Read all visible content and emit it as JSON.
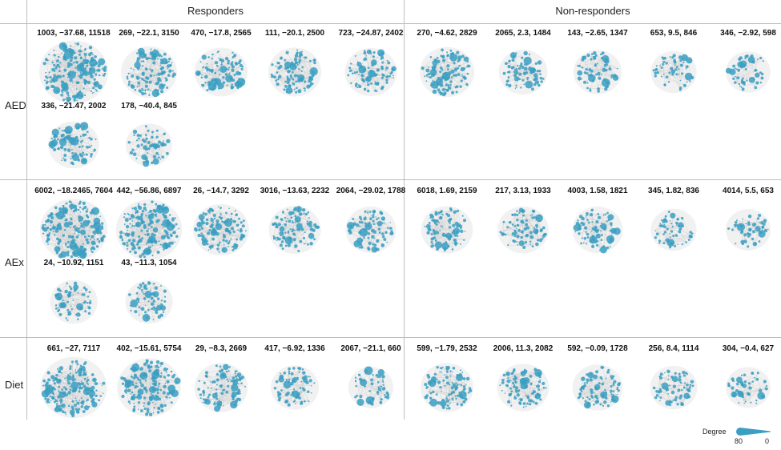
{
  "columns": [
    {
      "key": "responders",
      "label": "Responders"
    },
    {
      "key": "nonresponders",
      "label": "Non-responders"
    }
  ],
  "rows": [
    {
      "key": "aed",
      "label": "AED",
      "responders": [
        {
          "label": "1003, −37.68, 11518",
          "density": 1.0
        },
        {
          "label": "269, −22.1, 3150",
          "density": 0.55
        },
        {
          "label": "470, −17.8, 2565",
          "density": 0.45
        },
        {
          "label": "111, −20.1, 2500",
          "density": 0.45
        },
        {
          "label": "723, −24.87, 2402",
          "density": 0.42
        },
        {
          "label": "336, −21.47, 2002",
          "density": 0.38
        },
        {
          "label": "178, −40.4, 845",
          "density": 0.22
        }
      ],
      "nonresponders": [
        {
          "label": "270, −4.62, 2829",
          "density": 0.5
        },
        {
          "label": "2065, 2.3, 1484",
          "density": 0.3
        },
        {
          "label": "143, −2.65, 1347",
          "density": 0.28
        },
        {
          "label": "653, 9.5, 846",
          "density": 0.2
        },
        {
          "label": "346, −2.92, 598",
          "density": 0.16
        }
      ]
    },
    {
      "key": "aex",
      "label": "AEx",
      "responders": [
        {
          "label": "6002, −18.2465, 7604",
          "density": 0.95
        },
        {
          "label": "442, −56.86, 6897",
          "density": 0.9
        },
        {
          "label": "26, −14.7, 3292",
          "density": 0.55
        },
        {
          "label": "3016, −13.63, 2232",
          "density": 0.42
        },
        {
          "label": "2064, −29.02, 1788",
          "density": 0.36
        },
        {
          "label": "24, −10.92, 1151",
          "density": 0.26
        },
        {
          "label": "43, −11.3, 1054",
          "density": 0.25
        }
      ],
      "nonresponders": [
        {
          "label": "6018, 1.69, 2159",
          "density": 0.4
        },
        {
          "label": "217, 3.13, 1933",
          "density": 0.38
        },
        {
          "label": "4003, 1.58, 1821",
          "density": 0.36
        },
        {
          "label": "345, 1.82, 836",
          "density": 0.2
        },
        {
          "label": "4014, 5.5, 653",
          "density": 0.17
        }
      ]
    },
    {
      "key": "diet",
      "label": "Diet",
      "responders": [
        {
          "label": "661, −27, 7117",
          "density": 0.92
        },
        {
          "label": "402, −15.61, 5754",
          "density": 0.82
        },
        {
          "label": "29, −8.3, 2669",
          "density": 0.46
        },
        {
          "label": "417, −6.92, 1336",
          "density": 0.28
        },
        {
          "label": "2067, −21.1, 660",
          "density": 0.17
        }
      ],
      "nonresponders": [
        {
          "label": "599, −1.79, 2532",
          "density": 0.45
        },
        {
          "label": "2006, 11.3, 2082",
          "density": 0.4
        },
        {
          "label": "592, −0.09, 1728",
          "density": 0.35
        },
        {
          "label": "256, 8.4, 1114",
          "density": 0.25
        },
        {
          "label": "304, −0.4, 627",
          "density": 0.16
        }
      ]
    }
  ],
  "legend": {
    "title": "Degree",
    "max": "80",
    "min": "0"
  },
  "colors": {
    "node": "#3a9fc2",
    "edge": "#d2d2d2",
    "rule": "#bdbdbd"
  }
}
